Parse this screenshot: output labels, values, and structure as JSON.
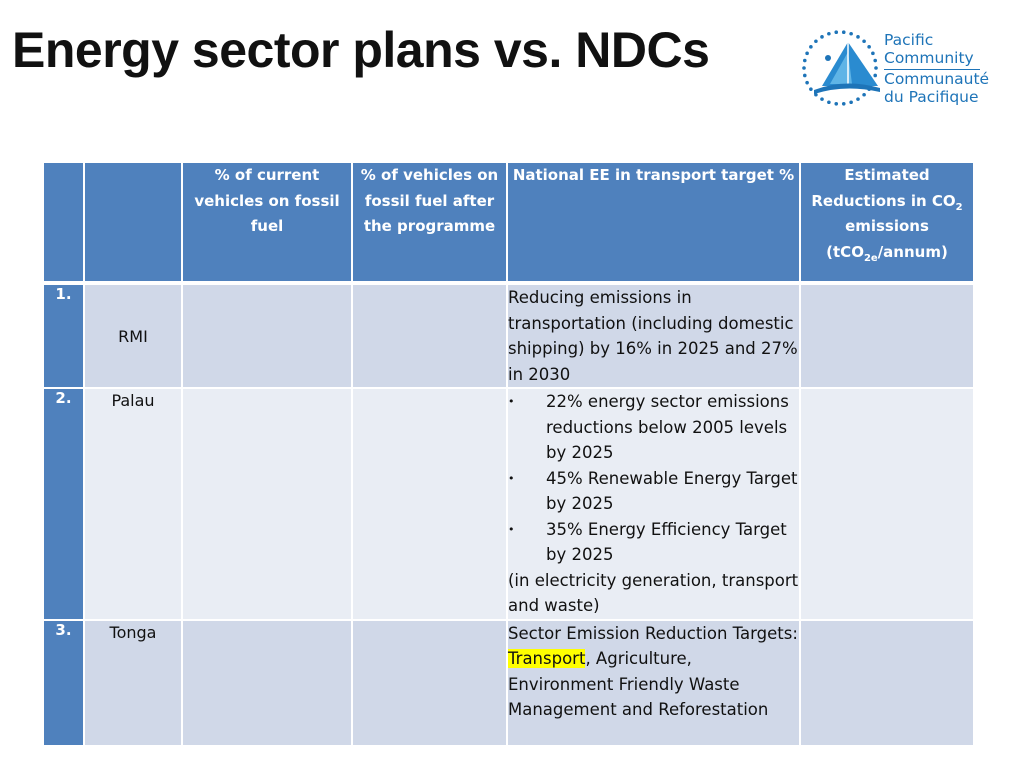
{
  "title": "Energy sector plans vs. NDCs",
  "logo": {
    "en_line1": "Pacific",
    "en_line2": "Community",
    "fr_line1": "Communauté",
    "fr_line2": "du Pacifique"
  },
  "table": {
    "headers": {
      "col_num": "",
      "col_country": "",
      "col_current": "% of current vehicles on fossil fuel",
      "col_after": "% of  vehicles on fossil fuel after the programme",
      "col_target": "National EE in transport target %",
      "col_reduction_a": "Estimated Reductions in CO",
      "col_reduction_sub1": "2",
      "col_reduction_b": " emissions (tCO",
      "col_reduction_sub2": "2e",
      "col_reduction_c": "/annum)"
    },
    "rows": [
      {
        "num": "1.",
        "country": "RMI",
        "current": "",
        "after": "",
        "target": "Reducing emissions in transportation (including domestic shipping) by 16% in 2025 and 27% in 2030",
        "reduction": ""
      },
      {
        "num": "2.",
        "country": "Palau",
        "current": "",
        "after": "",
        "bullets": [
          "22% energy sector emissions reductions below 2005 levels by 2025",
          "45% Renewable Energy Target by 2025",
          "35% Energy Efficiency Target by 2025"
        ],
        "target_note": "(in electricity generation, transport and waste)",
        "reduction": ""
      },
      {
        "num": "3.",
        "country": "Tonga",
        "current": "",
        "after": "",
        "target_prefix": "Sector Emission Reduction Targets: ",
        "target_highlight": "Transport",
        "target_suffix": ", Agriculture, Environment Friendly Waste Management and Reforestation",
        "reduction": ""
      }
    ]
  },
  "colors": {
    "header_blue": "#4f81bd",
    "row_odd": "#d0d8e8",
    "row_even": "#e9edf4",
    "highlight": "#ffff00",
    "logo_blue": "#1e74b8"
  }
}
